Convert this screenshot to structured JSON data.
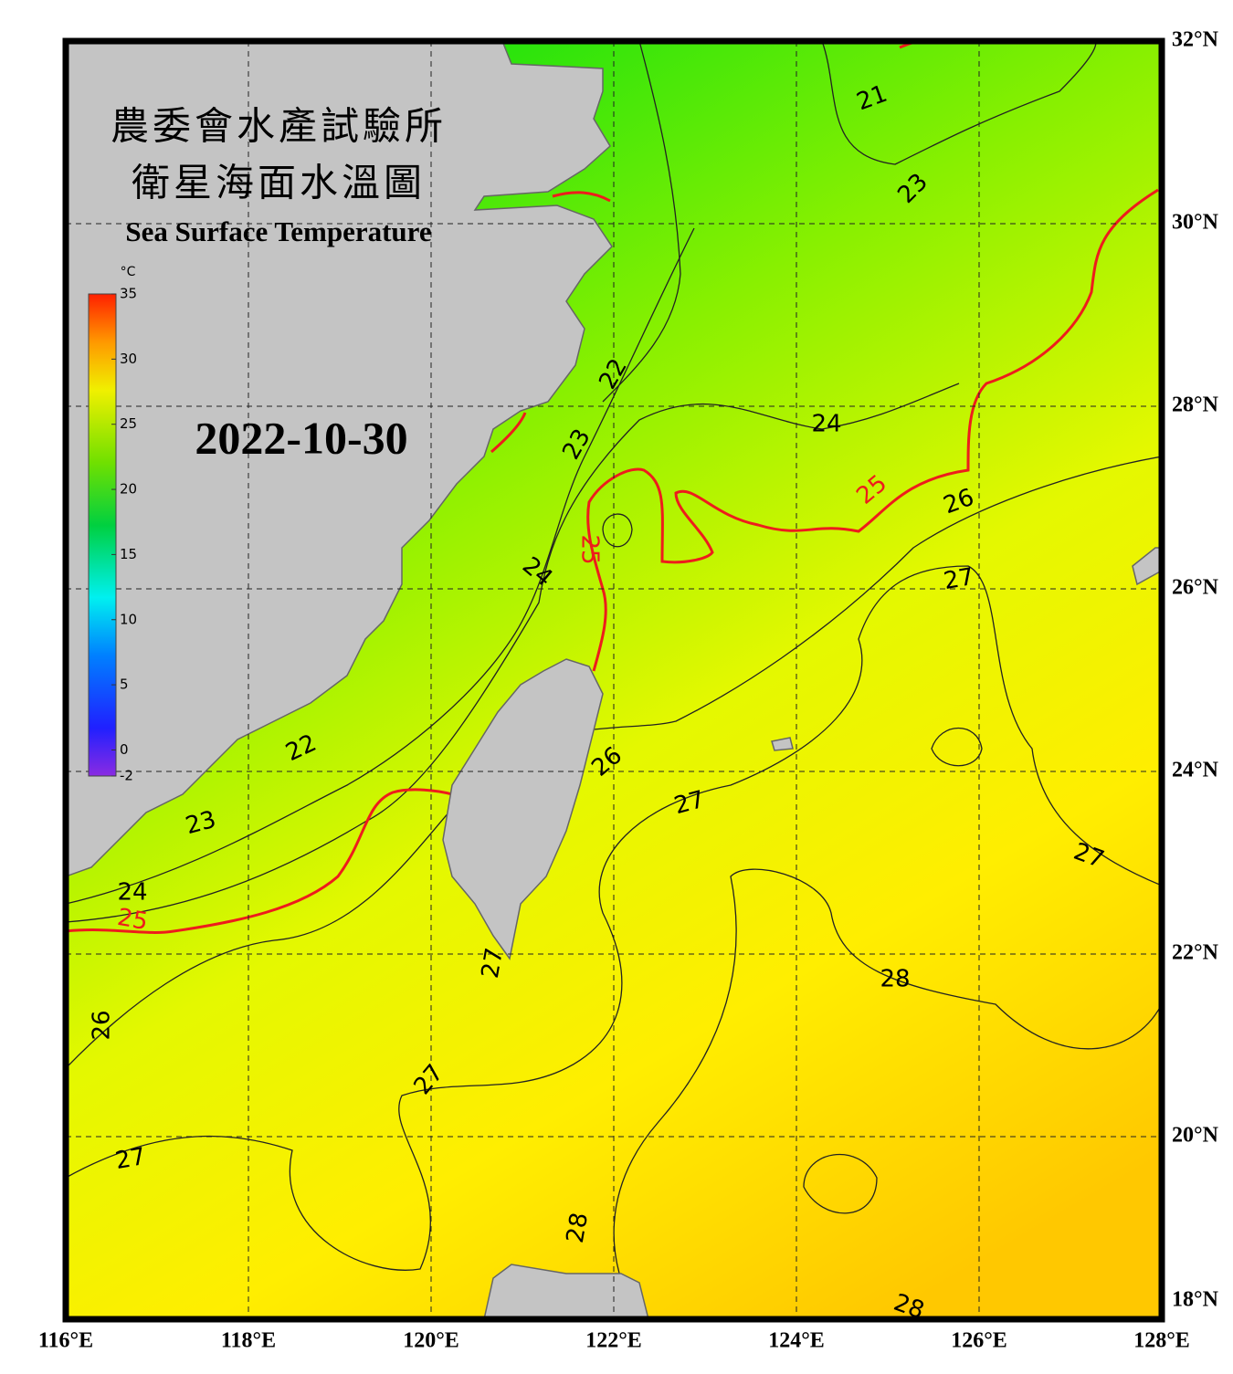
{
  "header": {
    "title_line1": "農委會水產試驗所",
    "title_line2": "衛星海面水溫圖",
    "subtitle": "Sea Surface Temperature",
    "date": "2022-10-30"
  },
  "colorbar": {
    "unit": "°C",
    "clim": [
      -2,
      35
    ],
    "ticks": [
      35,
      30,
      25,
      20,
      15,
      10,
      5,
      0,
      -2
    ]
  },
  "map": {
    "xlim": [
      116,
      128
    ],
    "ylim": [
      18,
      32
    ],
    "xticks": [
      {
        "value": 116,
        "label": "116°E"
      },
      {
        "value": 118,
        "label": "118°E"
      },
      {
        "value": 120,
        "label": "120°E"
      },
      {
        "value": 122,
        "label": "122°E"
      },
      {
        "value": 124,
        "label": "124°E"
      },
      {
        "value": 126,
        "label": "126°E"
      },
      {
        "value": 128,
        "label": "128°E"
      }
    ],
    "yticks": [
      {
        "value": 32,
        "label": "32°N"
      },
      {
        "value": 30,
        "label": "30°N"
      },
      {
        "value": 28,
        "label": "28°N"
      },
      {
        "value": 26,
        "label": "26°N"
      },
      {
        "value": 24,
        "label": "24°N"
      },
      {
        "value": 22,
        "label": "22°N"
      },
      {
        "value": 20,
        "label": "20°N"
      },
      {
        "value": 18,
        "label": "18°N"
      }
    ],
    "grid": true,
    "contour_labels": [
      21,
      23,
      22,
      23,
      24,
      25,
      26,
      25,
      24,
      27,
      26,
      22,
      27,
      23,
      27,
      24,
      25,
      28,
      27,
      26,
      27,
      27,
      28,
      28
    ]
  }
}
